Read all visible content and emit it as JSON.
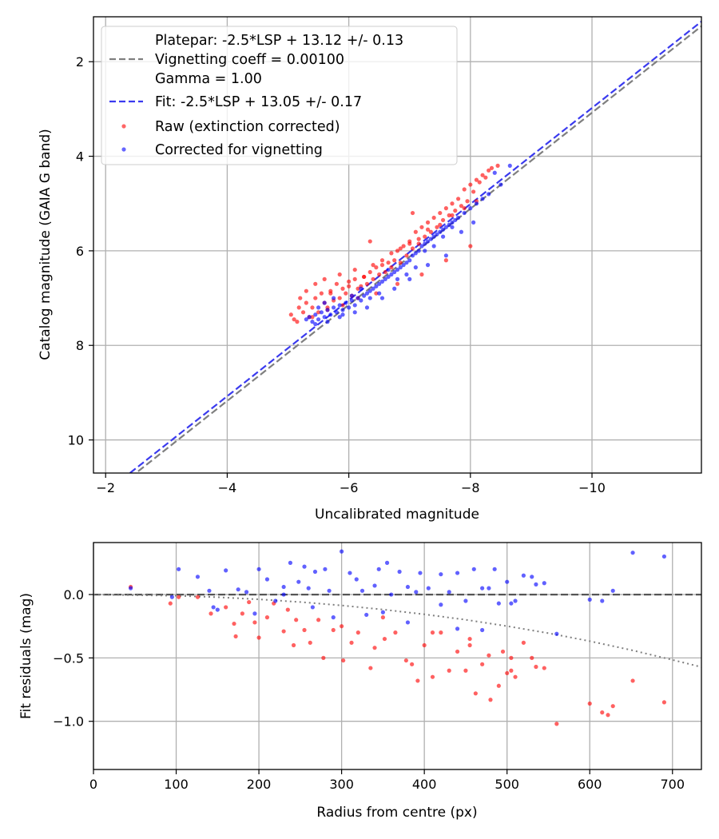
{
  "chart_data": [
    {
      "type": "scatter",
      "panel": "top",
      "xlabel": "Uncalibrated magnitude",
      "ylabel": "Catalog magnitude (GAIA G band)",
      "xlim": [
        -1.8,
        -11.8
      ],
      "ylim": [
        10.7,
        1.05
      ],
      "x_inverted": true,
      "y_inverted": true,
      "xticks": [
        -2,
        -4,
        -6,
        -8,
        -10
      ],
      "xtick_labels": [
        "−2",
        "−4",
        "−6",
        "−8",
        "−10"
      ],
      "yticks": [
        2,
        4,
        6,
        8,
        10
      ],
      "ytick_labels": [
        "2",
        "4",
        "6",
        "8",
        "10"
      ],
      "grid": true,
      "legend": {
        "placement": "top-left",
        "entries": [
          {
            "label_lines": [
              "Platepar: -2.5*LSP + 13.12 +/- 0.13",
              "Vignetting coeff = 0.00100",
              "Gamma = 1.00"
            ],
            "style": "dashed",
            "color": "#7f7f7f"
          },
          {
            "label_lines": [
              "Fit: -2.5*LSP + 13.05 +/- 0.17"
            ],
            "style": "dashed",
            "color": "#3a3aef"
          },
          {
            "label_lines": [
              "Raw (extinction corrected)"
            ],
            "style": "marker",
            "color": "#ff0000"
          },
          {
            "label_lines": [
              "Corrected for vignetting"
            ],
            "style": "marker",
            "color": "#0000ff"
          }
        ]
      },
      "lines": [
        {
          "name": "Platepar",
          "color": "#7f7f7f",
          "style": "dashed",
          "points": [
            [
              -2.4,
              10.8
            ],
            [
              -11.8,
              1.25
            ]
          ]
        },
        {
          "name": "Fit",
          "color": "#3a3aef",
          "style": "dashed",
          "points": [
            [
              -2.4,
              10.7
            ],
            [
              -11.8,
              1.15
            ]
          ]
        }
      ],
      "series": [
        {
          "name": "Raw (extinction corrected)",
          "color": "#ff0000",
          "x": [
            -5.05,
            -5.1,
            -5.18,
            -5.25,
            -5.3,
            -5.35,
            -5.4,
            -5.45,
            -5.5,
            -5.55,
            -5.6,
            -5.65,
            -5.7,
            -5.75,
            -5.8,
            -5.85,
            -5.9,
            -5.95,
            -6.0,
            -6.05,
            -6.1,
            -6.15,
            -6.2,
            -6.25,
            -6.3,
            -6.35,
            -6.4,
            -6.45,
            -6.5,
            -6.55,
            -6.6,
            -6.65,
            -6.7,
            -6.75,
            -6.8,
            -6.85,
            -6.9,
            -6.95,
            -7.0,
            -7.05,
            -7.1,
            -7.15,
            -7.2,
            -7.25,
            -7.3,
            -7.35,
            -7.4,
            -7.45,
            -7.5,
            -7.55,
            -7.6,
            -7.65,
            -7.7,
            -7.75,
            -7.8,
            -7.85,
            -7.9,
            -7.95,
            -8.0,
            -8.05,
            -8.1,
            -8.15,
            -8.2,
            -8.25,
            -8.3,
            -8.35,
            -8.45,
            -5.2,
            -5.3,
            -5.45,
            -5.6,
            -5.7,
            -5.85,
            -6.0,
            -6.1,
            -6.25,
            -6.4,
            -6.55,
            -6.7,
            -6.85,
            -7.0,
            -7.15,
            -7.3,
            -7.5,
            -7.7,
            -7.9,
            -8.1,
            -5.15,
            -5.4,
            -5.65,
            -5.9,
            -6.15,
            -6.45,
            -6.8,
            -7.2,
            -7.6,
            -8.0,
            -6.35,
            -7.05
          ],
          "y": [
            7.35,
            7.45,
            7.2,
            7.3,
            7.1,
            7.4,
            7.2,
            7.0,
            7.3,
            6.9,
            7.1,
            7.2,
            6.85,
            7.05,
            6.7,
            7.0,
            6.8,
            6.9,
            6.65,
            6.95,
            6.6,
            6.8,
            6.75,
            6.55,
            6.7,
            6.45,
            6.6,
            6.35,
            6.5,
            6.3,
            6.45,
            6.25,
            6.35,
            6.2,
            6.0,
            6.25,
            5.9,
            6.1,
            5.8,
            5.95,
            5.6,
            5.85,
            5.5,
            5.7,
            5.4,
            5.6,
            5.3,
            5.5,
            5.2,
            5.35,
            5.1,
            5.25,
            5.0,
            5.15,
            4.9,
            5.05,
            4.7,
            4.95,
            4.6,
            4.75,
            4.5,
            4.55,
            4.4,
            4.45,
            4.3,
            4.25,
            4.2,
            7.0,
            6.85,
            6.7,
            6.6,
            6.9,
            6.5,
            6.75,
            6.4,
            6.55,
            6.3,
            6.2,
            6.05,
            5.95,
            5.85,
            5.75,
            5.55,
            5.45,
            5.25,
            5.1,
            4.95,
            7.5,
            7.4,
            7.25,
            7.15,
            7.0,
            6.9,
            6.7,
            6.5,
            6.2,
            5.9,
            5.8,
            5.2
          ]
        },
        {
          "name": "Corrected for vignetting",
          "color": "#0000ff",
          "x": [
            -5.3,
            -5.35,
            -5.4,
            -5.45,
            -5.5,
            -5.55,
            -5.6,
            -5.65,
            -5.7,
            -5.75,
            -5.8,
            -5.85,
            -5.9,
            -5.95,
            -6.0,
            -6.05,
            -6.1,
            -6.15,
            -6.2,
            -6.25,
            -6.3,
            -6.35,
            -6.4,
            -6.45,
            -6.5,
            -6.55,
            -6.6,
            -6.65,
            -6.7,
            -6.75,
            -6.8,
            -6.85,
            -6.9,
            -6.95,
            -7.0,
            -7.05,
            -7.1,
            -7.15,
            -7.2,
            -7.25,
            -7.3,
            -7.35,
            -7.4,
            -7.45,
            -7.5,
            -7.55,
            -7.6,
            -7.65,
            -7.7,
            -7.75,
            -7.8,
            -7.9,
            -8.0,
            -8.1,
            -8.2,
            -8.3,
            -8.5,
            -8.65,
            -5.5,
            -5.6,
            -5.75,
            -5.9,
            -6.05,
            -6.2,
            -6.35,
            -6.5,
            -6.65,
            -6.8,
            -6.95,
            -7.1,
            -7.25,
            -7.4,
            -7.55,
            -7.7,
            -5.45,
            -5.65,
            -5.85,
            -6.1,
            -6.3,
            -6.55,
            -6.75,
            -7.0,
            -7.3,
            -7.6,
            -7.85,
            -8.05,
            -8.4
          ],
          "y": [
            7.45,
            7.4,
            7.5,
            7.35,
            7.45,
            7.3,
            7.4,
            7.25,
            7.35,
            7.2,
            7.3,
            7.15,
            7.25,
            7.1,
            7.2,
            7.05,
            7.15,
            7.0,
            7.05,
            6.95,
            6.9,
            6.85,
            6.8,
            6.75,
            6.7,
            6.65,
            6.6,
            6.55,
            6.5,
            6.45,
            6.4,
            6.35,
            6.3,
            6.25,
            6.2,
            6.1,
            6.05,
            6.0,
            5.9,
            5.85,
            5.8,
            5.75,
            5.7,
            5.65,
            5.6,
            5.55,
            5.5,
            5.45,
            5.4,
            5.35,
            5.3,
            5.2,
            5.1,
            5.0,
            4.9,
            4.8,
            4.6,
            4.2,
            7.2,
            7.1,
            7.0,
            7.35,
            6.95,
            6.8,
            7.0,
            6.9,
            6.4,
            6.6,
            6.5,
            6.35,
            6.0,
            5.9,
            5.7,
            5.5,
            7.55,
            7.5,
            7.4,
            7.3,
            7.2,
            7.0,
            6.8,
            6.6,
            6.3,
            6.1,
            5.6,
            5.4,
            4.35
          ]
        }
      ]
    },
    {
      "type": "scatter",
      "panel": "bottom",
      "xlabel": "Radius from centre (px)",
      "ylabel": "Fit residuals (mag)",
      "xlim": [
        0,
        735
      ],
      "ylim": [
        -1.38,
        0.41
      ],
      "xticks": [
        0,
        100,
        200,
        300,
        400,
        500,
        600,
        700
      ],
      "xtick_labels": [
        "0",
        "100",
        "200",
        "300",
        "400",
        "500",
        "600",
        "700"
      ],
      "yticks": [
        0.0,
        -0.5,
        -1.0
      ],
      "ytick_labels": [
        "0.0",
        "−0.5",
        "−1.0"
      ],
      "grid": true,
      "lines": [
        {
          "name": "Zero residual",
          "color": "#555555",
          "style": "dashed",
          "points": [
            [
              0,
              0.0
            ],
            [
              735,
              0.0
            ]
          ]
        },
        {
          "name": "Vignetting model",
          "color": "#7f7f7f",
          "style": "dotted",
          "points": [
            [
              0,
              0
            ],
            [
              100,
              -0.0092
            ],
            [
              150,
              -0.021
            ],
            [
              200,
              -0.038
            ],
            [
              250,
              -0.059
            ],
            [
              300,
              -0.086
            ],
            [
              350,
              -0.118
            ],
            [
              400,
              -0.156
            ],
            [
              450,
              -0.199
            ],
            [
              500,
              -0.249
            ],
            [
              550,
              -0.305
            ],
            [
              600,
              -0.368
            ],
            [
              650,
              -0.438
            ],
            [
              700,
              -0.515
            ],
            [
              735,
              -0.572
            ]
          ]
        }
      ],
      "series": [
        {
          "name": "Raw (extinction corrected)",
          "color": "#ff0000",
          "x": [
            45,
            93,
            103,
            126,
            142,
            160,
            170,
            172,
            188,
            195,
            200,
            210,
            218,
            230,
            235,
            242,
            255,
            262,
            272,
            278,
            290,
            302,
            312,
            320,
            335,
            340,
            352,
            365,
            378,
            385,
            392,
            400,
            410,
            420,
            430,
            440,
            450,
            455,
            462,
            470,
            478,
            480,
            490,
            495,
            500,
            505,
            510,
            520,
            530,
            535,
            545,
            560,
            600,
            615,
            622,
            628,
            652,
            690,
            180,
            245,
            300,
            350,
            410,
            455,
            505
          ],
          "y": [
            0.06,
            -0.07,
            -0.02,
            -0.02,
            -0.15,
            -0.1,
            -0.23,
            -0.33,
            -0.06,
            -0.22,
            -0.34,
            -0.18,
            -0.07,
            -0.29,
            -0.12,
            -0.4,
            -0.28,
            -0.38,
            -0.2,
            -0.5,
            -0.28,
            -0.52,
            -0.38,
            -0.3,
            -0.58,
            -0.42,
            -0.35,
            -0.3,
            -0.52,
            -0.55,
            -0.68,
            -0.4,
            -0.65,
            -0.3,
            -0.6,
            -0.45,
            -0.6,
            -0.4,
            -0.78,
            -0.55,
            -0.48,
            -0.83,
            -0.72,
            -0.45,
            -0.62,
            -0.5,
            -0.65,
            -0.38,
            -0.5,
            -0.57,
            -0.58,
            -1.02,
            -0.86,
            -0.93,
            -0.95,
            -0.88,
            -0.68,
            -0.85,
            -0.15,
            -0.2,
            -0.25,
            -0.18,
            -0.3,
            -0.35,
            -0.6
          ]
        },
        {
          "name": "Corrected for vignetting",
          "color": "#0000ff",
          "x": [
            45,
            95,
            103,
            126,
            140,
            145,
            160,
            175,
            185,
            200,
            210,
            220,
            230,
            238,
            248,
            255,
            260,
            268,
            280,
            285,
            300,
            310,
            318,
            325,
            340,
            345,
            355,
            360,
            370,
            380,
            390,
            395,
            405,
            420,
            430,
            440,
            450,
            460,
            470,
            478,
            485,
            490,
            500,
            505,
            520,
            530,
            535,
            545,
            560,
            600,
            615,
            628,
            652,
            690,
            150,
            230,
            265,
            330,
            380,
            420,
            470,
            510,
            195,
            290,
            350,
            440
          ],
          "y": [
            0.05,
            -0.02,
            0.2,
            0.14,
            0.03,
            -0.1,
            0.19,
            0.04,
            0.02,
            0.2,
            0.12,
            -0.05,
            0.0,
            0.25,
            0.1,
            0.22,
            0.05,
            0.18,
            0.2,
            0.03,
            0.34,
            0.17,
            0.12,
            0.03,
            0.07,
            0.2,
            0.25,
            0.0,
            0.18,
            0.06,
            0.02,
            0.17,
            0.05,
            0.16,
            0.02,
            0.17,
            -0.05,
            0.2,
            0.05,
            0.05,
            0.2,
            -0.07,
            0.1,
            -0.07,
            0.15,
            0.14,
            0.08,
            0.09,
            -0.31,
            -0.04,
            -0.05,
            0.03,
            0.33,
            0.3,
            -0.12,
            0.06,
            -0.1,
            -0.16,
            -0.22,
            -0.08,
            -0.28,
            -0.05,
            -0.15,
            -0.18,
            -0.14,
            -0.27
          ]
        }
      ]
    }
  ]
}
